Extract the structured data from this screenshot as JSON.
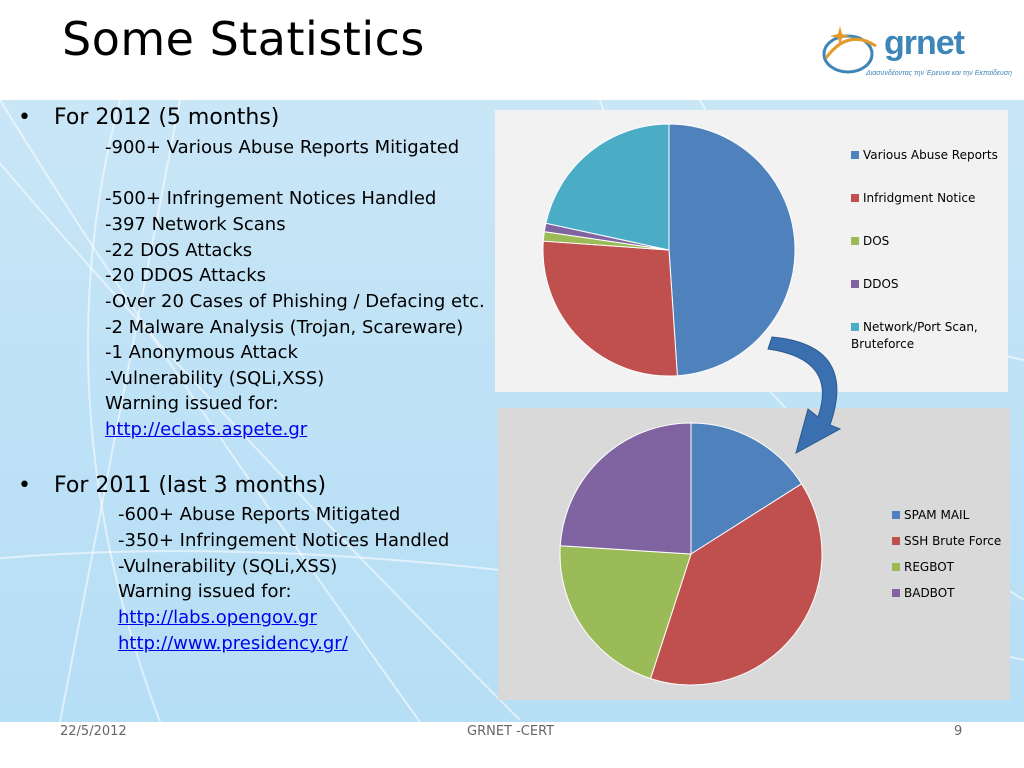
{
  "slide": {
    "title": "Some Statistics",
    "logo": {
      "brand": "grnet",
      "tagline": "Διασυνδέοντας την Έρευνα και την Εκπαίδευση"
    },
    "section_2012": {
      "heading": "For 2012 (5 months)",
      "lines": [
        "-900+ Various Abuse Reports Mitigated",
        "-500+ Infringement Notices Handled",
        "-397 Network Scans",
        "-22 DOS Attacks",
        "-20 DDOS Attacks",
        "-Over 20 Cases of Phishing / Defacing etc.",
        "-2 Malware Analysis (Trojan,  Scareware)",
        "-1 Anonymous Attack",
        "-Vulnerability (SQLi,XSS)",
        "Warning issued for:"
      ],
      "links": [
        "http://eclass.aspete.gr"
      ]
    },
    "section_2011": {
      "heading": "For 2011 (last 3 months)",
      "lines": [
        "-600+ Abuse Reports Mitigated",
        "-350+ Infringement Notices Handled",
        "-Vulnerability (SQLi,XSS)",
        "Warning issued for:"
      ],
      "links": [
        "http://labs.opengov.gr",
        "http://www.presidency.gr/"
      ]
    },
    "footer": {
      "date": "22/5/2012",
      "center": "GRNET -CERT",
      "page": "9"
    }
  },
  "chart_data": [
    {
      "type": "pie",
      "categories": [
        "Various Abuse Reports",
        "Infridgment Notice",
        "DOS",
        "DDOS",
        "Network/Port Scan, Bruteforce"
      ],
      "values": [
        900,
        500,
        22,
        20,
        397
      ],
      "colors": [
        "#4f81bd",
        "#c0504d",
        "#9bbb59",
        "#8064a2",
        "#4bacc6"
      ],
      "legend": "right"
    },
    {
      "type": "pie",
      "categories": [
        "SPAM MAIL",
        "SSH Brute Force",
        "REGBOT",
        "BADBOT"
      ],
      "values": [
        16,
        39,
        21,
        24
      ],
      "colors": [
        "#4f81bd",
        "#c0504d",
        "#9bbb59",
        "#8064a2"
      ],
      "legend": "right"
    }
  ]
}
